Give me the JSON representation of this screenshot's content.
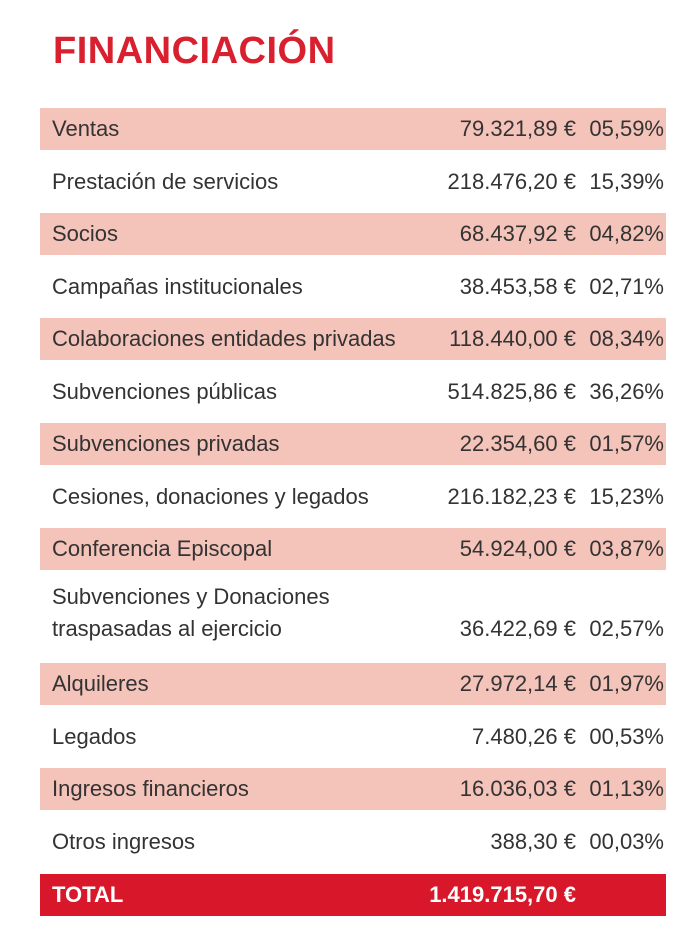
{
  "title": "FINANCIACIÓN",
  "colors": {
    "accent": "#d8202f",
    "row_shade": "#f4c3b9",
    "total_bg": "#d8182a"
  },
  "rows": [
    {
      "label": "Ventas",
      "amount": "79.321,89 €",
      "pct": "05,59%"
    },
    {
      "label": "Prestación de servicios",
      "amount": "218.476,20 €",
      "pct": "15,39%"
    },
    {
      "label": "Socios",
      "amount": "68.437,92 €",
      "pct": "04,82%"
    },
    {
      "label": "Campañas institucionales",
      "amount": "38.453,58 €",
      "pct": "02,71%"
    },
    {
      "label": "Colaboraciones entidades privadas",
      "amount": "118.440,00 €",
      "pct": "08,34%"
    },
    {
      "label": "Subvenciones públicas",
      "amount": "514.825,86 €",
      "pct": "36,26%"
    },
    {
      "label": "Subvenciones privadas",
      "amount": "22.354,60 €",
      "pct": "01,57%"
    },
    {
      "label": "Cesiones, donaciones y legados",
      "amount": "216.182,23 €",
      "pct": "15,23%"
    },
    {
      "label": "Conferencia Episcopal",
      "amount": "54.924,00 €",
      "pct": "03,87%"
    },
    {
      "label_line1": "Subvenciones y Donaciones",
      "label_line2": "traspasadas al ejercicio",
      "amount": "36.422,69 €",
      "pct": "02,57%"
    },
    {
      "label": "Alquileres",
      "amount": "27.972,14 €",
      "pct": "01,97%"
    },
    {
      "label": "Legados",
      "amount": "7.480,26 €",
      "pct": "00,53%"
    },
    {
      "label": "Ingresos financieros",
      "amount": "16.036,03 €",
      "pct": "01,13%"
    },
    {
      "label": "Otros ingresos",
      "amount": "388,30 €",
      "pct": "00,03%"
    }
  ],
  "total": {
    "label": "TOTAL",
    "amount": "1.419.715,70 €"
  }
}
